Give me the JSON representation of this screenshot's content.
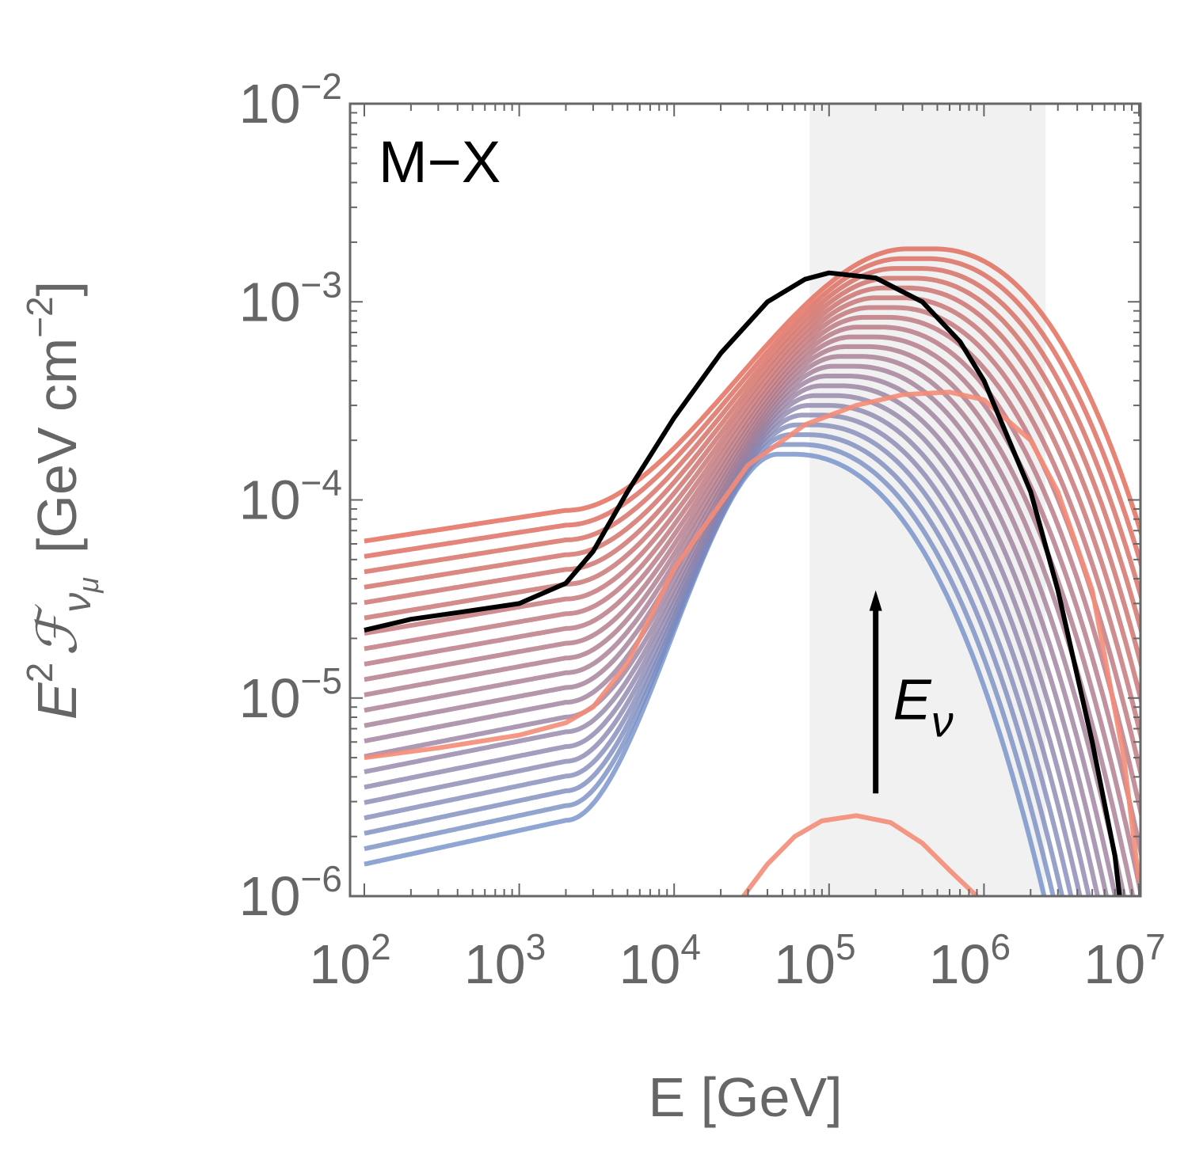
{
  "chart_data": {
    "type": "line",
    "panel_label": "M−X",
    "xlabel": "E [GeV]",
    "ylabel": {
      "base": "E",
      "sup": "2",
      "script": "ℱ",
      "sub": "ν",
      "subsub": "μ",
      "units_open": "[GeV cm",
      "units_sup": "−2",
      "units_close": "]"
    },
    "x_scale": "log",
    "y_scale": "log",
    "xlim": [
      100,
      10000000
    ],
    "ylim": [
      1e-06,
      0.01
    ],
    "x_ticks": [
      {
        "base": "10",
        "exp": "2",
        "value": 100
      },
      {
        "base": "10",
        "exp": "3",
        "value": 1000
      },
      {
        "base": "10",
        "exp": "4",
        "value": 10000
      },
      {
        "base": "10",
        "exp": "5",
        "value": 100000
      },
      {
        "base": "10",
        "exp": "6",
        "value": 1000000
      },
      {
        "base": "10",
        "exp": "7",
        "value": 10000000
      }
    ],
    "y_ticks": [
      {
        "base": "10",
        "exp": "−6",
        "value": 1e-06
      },
      {
        "base": "10",
        "exp": "−5",
        "value": 1e-05
      },
      {
        "base": "10",
        "exp": "−4",
        "value": 0.0001
      },
      {
        "base": "10",
        "exp": "−3",
        "value": 0.001
      },
      {
        "base": "10",
        "exp": "−2",
        "value": 0.01
      }
    ],
    "shaded_band": {
      "x_from": 75000,
      "x_to": 2500000,
      "color": "#f1f1f1"
    },
    "annotation": {
      "arrow_x": 200000,
      "arrow_y_from": 3.3e-06,
      "arrow_y_to": 3.5e-05,
      "label_base": "E",
      "label_sub": "ν"
    },
    "family_color_low": "#6f8cc8",
    "family_color_high": "#e0614e",
    "highlight_color": "#000000",
    "outlier_color": "#f48c78",
    "family": {
      "count": 22,
      "start_low": 1.45e-06,
      "start_high": 6.2e-05,
      "peak_low": 0.00017,
      "peak_high": 0.00185,
      "peak_x_low": 60000,
      "peak_x_high": 480000
    },
    "series_highlight": {
      "name": "",
      "x": [
        100,
        200,
        400,
        1000,
        2000,
        3000,
        5000,
        10000,
        20000,
        40000,
        70000,
        100000,
        200000,
        400000,
        700000,
        1000000,
        2000000,
        3000000,
        5000000,
        7000000,
        7500000
      ],
      "y": [
        2.2e-05,
        2.5e-05,
        2.7e-05,
        3e-05,
        3.8e-05,
        5.5e-05,
        0.00011,
        0.00026,
        0.00055,
        0.001,
        0.0013,
        0.0014,
        0.00132,
        0.001,
        0.00063,
        0.0004,
        0.00011,
        3.5e-05,
        6e-06,
        1.6e-06,
        1e-06
      ]
    },
    "series_outlier_mid": {
      "x": [
        100,
        300,
        1000,
        2000,
        3000,
        5000,
        10000,
        30000,
        70000,
        150000,
        300000,
        600000,
        1000000,
        2000000,
        3000000,
        5000000,
        8000000,
        10000000
      ],
      "y": [
        5e-06,
        5.6e-06,
        6.5e-06,
        7.5e-06,
        9e-06,
        1.5e-05,
        4.5e-05,
        0.00015,
        0.00024,
        0.0003,
        0.00034,
        0.00035,
        0.00032,
        0.0002,
        0.00011,
        3.5e-05,
        5e-06,
        1.2e-06
      ]
    },
    "series_outlier_low": {
      "x": [
        28000,
        40000,
        60000,
        90000,
        150000,
        250000,
        400000,
        600000,
        900000
      ],
      "y": [
        1e-06,
        1.45e-06,
        2e-06,
        2.4e-06,
        2.55e-06,
        2.35e-06,
        1.85e-06,
        1.35e-06,
        1e-06
      ]
    }
  }
}
